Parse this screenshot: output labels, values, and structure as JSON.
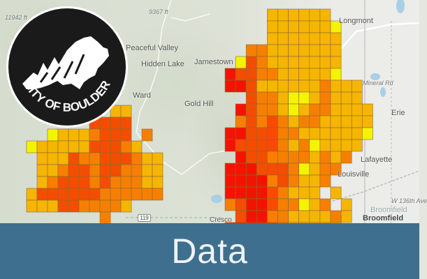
{
  "map": {
    "labels": {
      "longmont": "Longmont",
      "mineral_rd": "Mineral Rd",
      "erie": "Erie",
      "lafayette": "Lafayette",
      "louisville": "Louisville",
      "w136": "W 136th Ave",
      "broomfield_area": "Broomfield",
      "broomfield": "Broomfield",
      "peaceful_valley": "Peaceful Valley",
      "hidden_lake": "Hidden Lake",
      "jamestown": "Jamestown",
      "ward": "Ward",
      "gold_hill": "Gold Hill",
      "elev1": "9367 ft",
      "elev2": "11942 ft",
      "cresco": "Cresco",
      "route": "119"
    },
    "level_colors": {
      "1": "#f4f400",
      "2": "#f6b500",
      "3": "#f77f00",
      "4": "#f44d00",
      "5": "#f21400"
    },
    "east_grid": [
      "....222222....",
      "....2222221...",
      "....2222222...",
      "..332222222...",
      ".1432222222...",
      "54433222221...",
      "5542222223222.",
      "..43321123222.",
      ".5433212332222",
      ".3434323322222",
      "55444332222221",
      "5444432312222.",
      ".54433332323..",
      "55544431233...",
      "5555343223....",
      "555543222 2...",
      "3455433123 2..",
      ".45533222232..",
      "55554322222..."
    ],
    "west_grid": [
      "........22...",
      "......4444...",
      "..12223444 3.",
      "12222244432..",
      ".222433444322",
      ".223443443322",
      ".234443433322",
      "2444444333333",
      "2224433332...",
      ".......3....."
    ]
  },
  "logo": {
    "text": "CITY OF BOULDER"
  },
  "banner": {
    "title": "Data"
  }
}
